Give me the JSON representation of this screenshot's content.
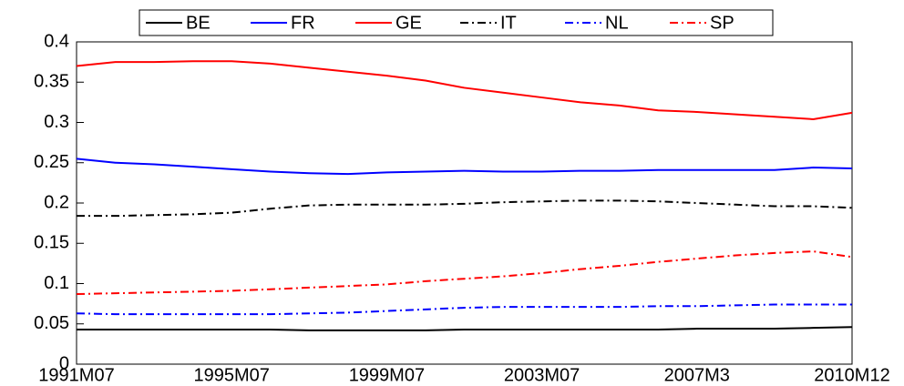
{
  "chart_data": {
    "type": "line",
    "categories": [
      "1991M07",
      null,
      null,
      null,
      "1995M07",
      null,
      null,
      null,
      "1999M07",
      null,
      null,
      null,
      "2003M07",
      null,
      null,
      null,
      "2007M3",
      null,
      null,
      null,
      "2010M12"
    ],
    "series": [
      {
        "name": "BE",
        "color": "#000000",
        "linestyle": "solid",
        "values": [
          0.043,
          0.043,
          0.043,
          0.043,
          0.043,
          0.043,
          0.042,
          0.042,
          0.042,
          0.042,
          0.043,
          0.043,
          0.043,
          0.043,
          0.043,
          0.043,
          0.044,
          0.044,
          0.044,
          0.045,
          0.046
        ]
      },
      {
        "name": "FR",
        "color": "#0000ff",
        "linestyle": "solid",
        "values": [
          0.255,
          0.25,
          0.248,
          0.245,
          0.242,
          0.239,
          0.237,
          0.236,
          0.238,
          0.239,
          0.24,
          0.239,
          0.239,
          0.24,
          0.24,
          0.241,
          0.241,
          0.241,
          0.241,
          0.244,
          0.243
        ]
      },
      {
        "name": "GE",
        "color": "#ff0000",
        "linestyle": "solid",
        "values": [
          0.37,
          0.375,
          0.375,
          0.376,
          0.376,
          0.373,
          0.368,
          0.363,
          0.358,
          0.352,
          0.343,
          0.337,
          0.331,
          0.325,
          0.321,
          0.315,
          0.313,
          0.31,
          0.307,
          0.304,
          0.312
        ]
      },
      {
        "name": "IT",
        "color": "#000000",
        "linestyle": "dashdot",
        "values": [
          0.184,
          0.184,
          0.185,
          0.186,
          0.188,
          0.193,
          0.197,
          0.198,
          0.198,
          0.198,
          0.199,
          0.201,
          0.202,
          0.203,
          0.203,
          0.202,
          0.2,
          0.198,
          0.196,
          0.196,
          0.194
        ]
      },
      {
        "name": "NL",
        "color": "#0000ff",
        "linestyle": "dashdot",
        "values": [
          0.063,
          0.062,
          0.062,
          0.062,
          0.062,
          0.062,
          0.063,
          0.064,
          0.066,
          0.068,
          0.07,
          0.071,
          0.071,
          0.071,
          0.071,
          0.072,
          0.072,
          0.073,
          0.074,
          0.074,
          0.074
        ]
      },
      {
        "name": "SP",
        "color": "#ff0000",
        "linestyle": "dashdot",
        "values": [
          0.087,
          0.088,
          0.089,
          0.09,
          0.091,
          0.093,
          0.095,
          0.097,
          0.099,
          0.103,
          0.106,
          0.109,
          0.113,
          0.118,
          0.122,
          0.127,
          0.131,
          0.135,
          0.138,
          0.14,
          0.133
        ]
      }
    ],
    "ylim": [
      0,
      0.4
    ],
    "yticks": [
      0,
      0.05,
      0.1,
      0.15,
      0.2,
      0.25,
      0.3,
      0.35,
      0.4
    ],
    "grid": false,
    "legend": "top"
  }
}
